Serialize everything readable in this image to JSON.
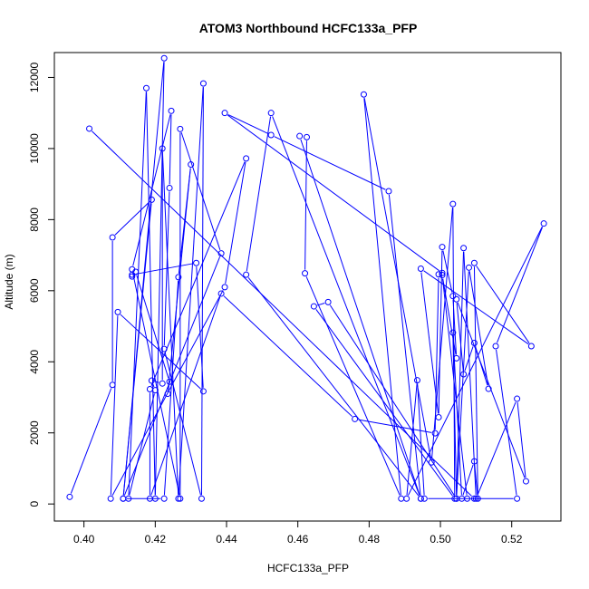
{
  "chart_data": {
    "type": "line",
    "title": "ATOM3 Northbound HCFC133a_PFP",
    "xlabel": "HCFC133a_PFP",
    "ylabel": "Altitude (m)",
    "xlim": [
      0.3917,
      0.5338
    ],
    "ylim": [
      -480,
      12700
    ],
    "xticks": [
      0.4,
      0.42,
      0.44,
      0.46,
      0.48,
      0.5,
      0.52
    ],
    "xtick_labels": [
      "0.40",
      "0.42",
      "0.44",
      "0.46",
      "0.48",
      "0.50",
      "0.52"
    ],
    "yticks": [
      0,
      2000,
      4000,
      6000,
      8000,
      10000,
      12000
    ],
    "ytick_labels": [
      "0",
      "2000",
      "4000",
      "6000",
      "8000",
      "10000",
      "12000"
    ],
    "series": [
      {
        "color": "#0000ff",
        "marker": "open-circle",
        "points": [
          [
            0.396,
            200
          ],
          [
            0.408,
            3350
          ],
          [
            0.408,
            7500
          ],
          [
            0.419,
            8560
          ],
          [
            0.411,
            150
          ],
          [
            0.4225,
            12540
          ],
          [
            0.42,
            150
          ],
          [
            0.4175,
            11700
          ],
          [
            0.4125,
            150
          ],
          [
            0.42,
            3200
          ],
          [
            0.419,
            3470
          ],
          [
            0.422,
            3390
          ],
          [
            0.422,
            10000
          ],
          [
            0.4265,
            150
          ],
          [
            0.4335,
            11830
          ],
          [
            0.433,
            150
          ],
          [
            0.4225,
            4360
          ],
          [
            0.424,
            8890
          ],
          [
            0.4245,
            11060
          ],
          [
            0.4135,
            6600
          ],
          [
            0.427,
            150
          ],
          [
            0.427,
            10550
          ],
          [
            0.4385,
            7050
          ],
          [
            0.411,
            150
          ],
          [
            0.4225,
            150
          ],
          [
            0.4265,
            6380
          ],
          [
            0.43,
            9550
          ],
          [
            0.4235,
            3100
          ],
          [
            0.424,
            3440
          ],
          [
            0.4145,
            6530
          ],
          [
            0.4135,
            6400
          ],
          [
            0.4135,
            6450
          ],
          [
            0.4315,
            6780
          ],
          [
            0.4335,
            3170
          ],
          [
            0.4095,
            5400
          ],
          [
            0.4075,
            150
          ],
          [
            0.4395,
            6100
          ],
          [
            0.4455,
            9720
          ],
          [
            0.4185,
            3230
          ],
          [
            0.4185,
            150
          ],
          [
            0.4385,
            5920
          ],
          [
            0.476,
            2390
          ],
          [
            0.4985,
            1990
          ],
          [
            0.4995,
            6460
          ],
          [
            0.5005,
            6500
          ],
          [
            0.4395,
            11000
          ],
          [
            0.4525,
            10380
          ],
          [
            0.4855,
            8800
          ],
          [
            0.4945,
            150
          ],
          [
            0.4455,
            6450
          ],
          [
            0.4525,
            11000
          ],
          [
            0.4945,
            150
          ],
          [
            0.4605,
            10350
          ],
          [
            0.4625,
            10320
          ],
          [
            0.462,
            6490
          ],
          [
            0.489,
            150
          ],
          [
            0.4785,
            11520
          ],
          [
            0.4975,
            1170
          ],
          [
            0.5035,
            8440
          ],
          [
            0.504,
            150
          ],
          [
            0.4645,
            5560
          ],
          [
            0.4685,
            5680
          ],
          [
            0.5045,
            150
          ],
          [
            0.5065,
            7200
          ],
          [
            0.51,
            150
          ],
          [
            0.5215,
            2960
          ],
          [
            0.524,
            640
          ],
          [
            0.5045,
            5760
          ],
          [
            0.5065,
            3650
          ],
          [
            0.5095,
            4530
          ],
          [
            0.5135,
            3240
          ],
          [
            0.508,
            6650
          ],
          [
            0.5045,
            150
          ],
          [
            0.5035,
            4820
          ],
          [
            0.506,
            150
          ],
          [
            0.5095,
            1200
          ],
          [
            0.5105,
            150
          ],
          [
            0.5095,
            6780
          ],
          [
            0.5255,
            4440
          ],
          [
            0.4945,
            6620
          ],
          [
            0.4995,
            2440
          ],
          [
            0.5005,
            7230
          ],
          [
            0.5035,
            5850
          ],
          [
            0.5045,
            4100
          ],
          [
            0.5005,
            6440
          ],
          [
            0.5075,
            150
          ],
          [
            0.5215,
            150
          ],
          [
            0.5155,
            4440
          ],
          [
            0.529,
            7890
          ],
          [
            0.4905,
            150
          ],
          [
            0.4935,
            3480
          ],
          [
            0.4955,
            150
          ],
          [
            0.5095,
            150
          ],
          [
            0.4015,
            10560
          ]
        ]
      }
    ]
  }
}
